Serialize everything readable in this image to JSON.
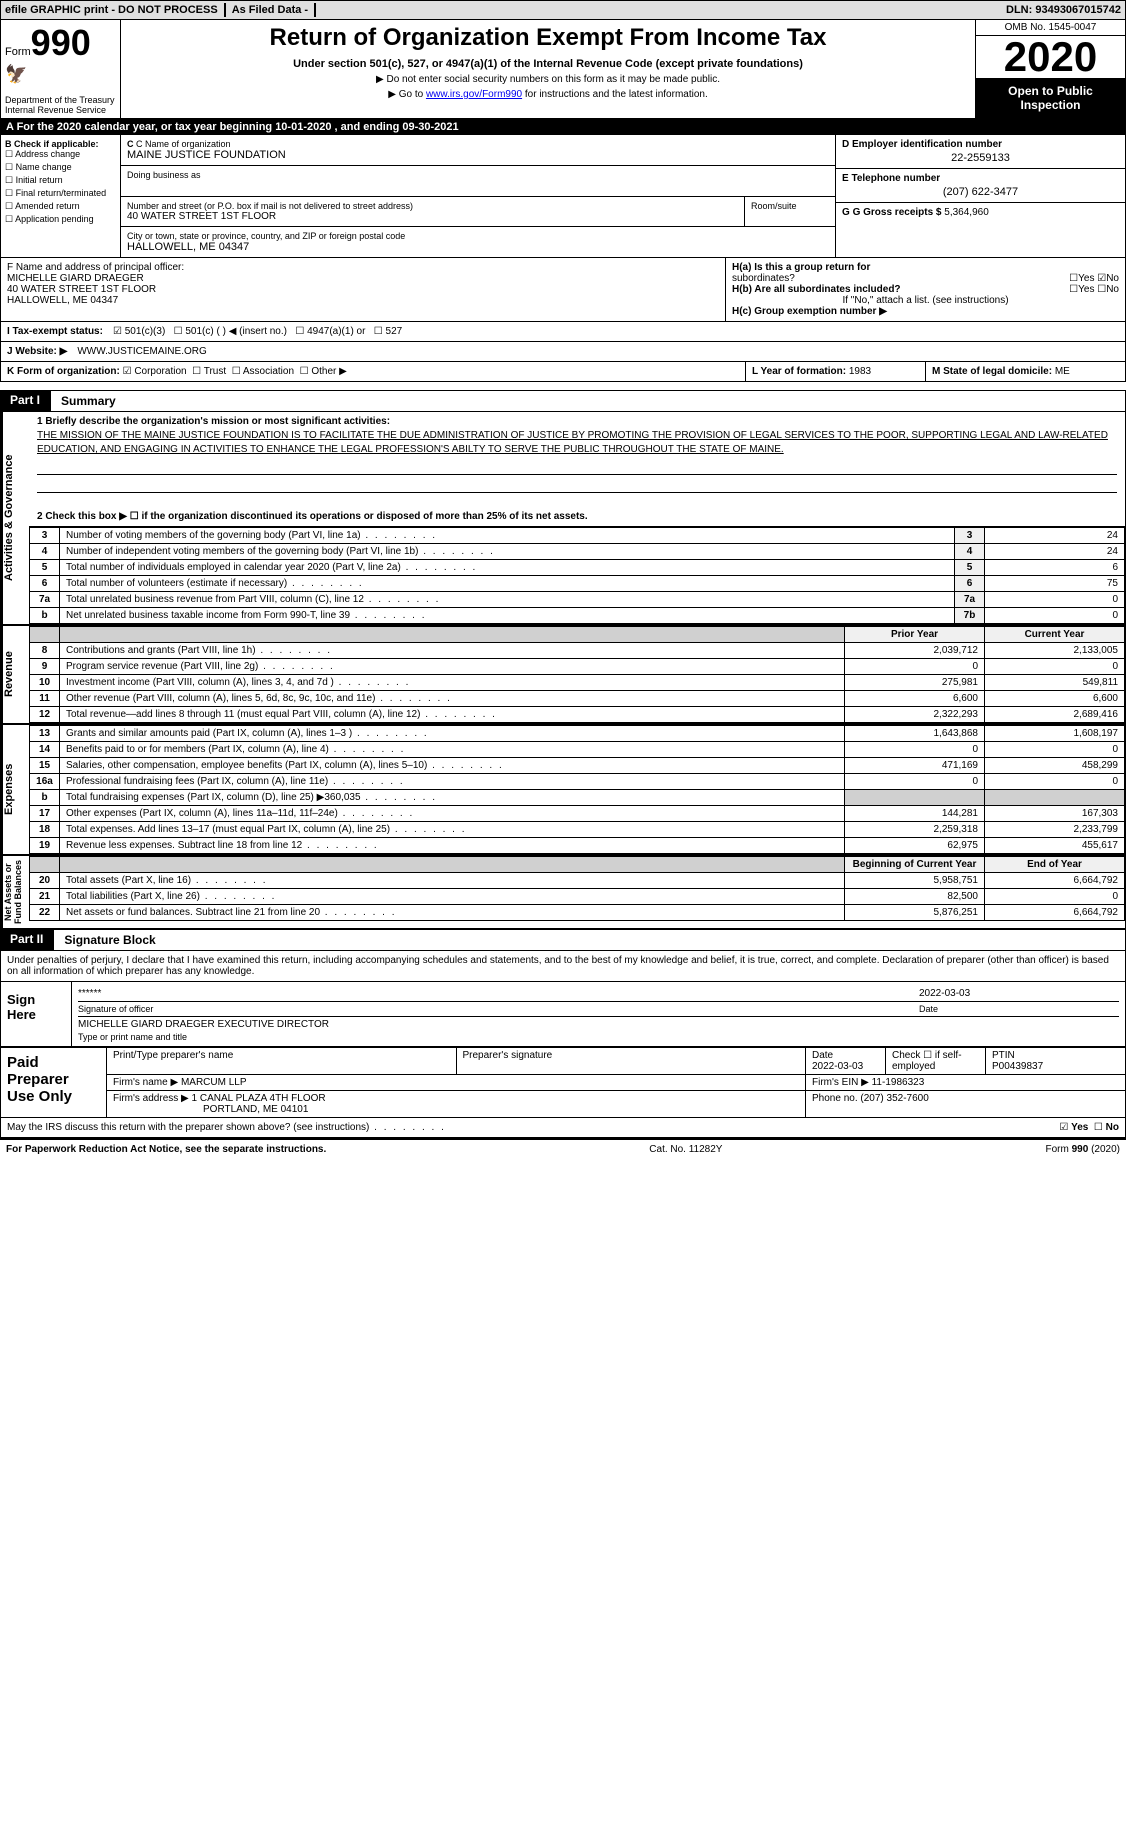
{
  "topbar": {
    "efile": "efile GRAPHIC print - DO NOT PROCESS",
    "asfiled": "As Filed Data -",
    "dln": "DLN: 93493067015742"
  },
  "header": {
    "form_prefix": "Form",
    "form_number": "990",
    "title": "Return of Organization Exempt From Income Tax",
    "subtitle": "Under section 501(c), 527, or 4947(a)(1) of the Internal Revenue Code (except private foundations)",
    "note1": "▶ Do not enter social security numbers on this form as it may be made public.",
    "note2_pre": "▶ Go to ",
    "note2_link": "www.irs.gov/Form990",
    "note2_post": " for instructions and the latest information.",
    "dept": "Department of the Treasury\nInternal Revenue Service",
    "omb": "OMB No. 1545-0047",
    "year": "2020",
    "open": "Open to Public\nInspection"
  },
  "row_a": "A  For the 2020 calendar year, or tax year beginning 10-01-2020   , and ending 09-30-2021",
  "section_b": {
    "label": "B Check if applicable:",
    "checks": [
      "Address change",
      "Name change",
      "Initial return",
      "Final return/terminated",
      "Amended return",
      "Application pending"
    ],
    "c_label": "C Name of organization",
    "c_name": "MAINE JUSTICE FOUNDATION",
    "dba_label": "Doing business as",
    "addr_label": "Number and street (or P.O. box if mail is not delivered to street address)",
    "addr": "40 WATER STREET 1ST FLOOR",
    "room_label": "Room/suite",
    "city_label": "City or town, state or province, country, and ZIP or foreign postal code",
    "city": "HALLOWELL, ME  04347",
    "d_label": "D Employer identification number",
    "d_value": "22-2559133",
    "e_label": "E Telephone number",
    "e_value": "(207) 622-3477",
    "g_label": "G Gross receipts $",
    "g_value": "5,364,960"
  },
  "officer": {
    "f_label": "F  Name and address of principal officer:",
    "name": "MICHELLE GIARD DRAEGER",
    "addr1": "40 WATER STREET 1ST FLOOR",
    "addr2": "HALLOWELL, ME  04347",
    "ha_label": "H(a)  Is this a group return for",
    "ha_sub": "subordinates?",
    "hb_label": "H(b)  Are all subordinates included?",
    "hb_note": "If \"No,\" attach a list. (see instructions)",
    "hc_label": "H(c)  Group exemption number ▶"
  },
  "row_i": {
    "label": "I  Tax-exempt status:",
    "opts": [
      "501(c)(3)",
      "501(c) (  ) ◀ (insert no.)",
      "4947(a)(1) or",
      "527"
    ]
  },
  "row_j": {
    "label": "J  Website: ▶",
    "value": "WWW.JUSTICEMAINE.ORG"
  },
  "row_k": {
    "label": "K Form of organization:",
    "opts": [
      "Corporation",
      "Trust",
      "Association",
      "Other ▶"
    ],
    "l_label": "L Year of formation:",
    "l_value": "1983",
    "m_label": "M State of legal domicile:",
    "m_value": "ME"
  },
  "part1": {
    "no": "Part I",
    "title": "Summary"
  },
  "mission": {
    "q1": "1 Briefly describe the organization's mission or most significant activities:",
    "ans": "THE MISSION OF THE MAINE JUSTICE FOUNDATION IS TO FACILITATE THE DUE ADMINISTRATION OF JUSTICE BY PROMOTING THE PROVISION OF LEGAL SERVICES TO THE POOR, SUPPORTING LEGAL AND LAW-RELATED EDUCATION, AND ENGAGING IN ACTIVITIES TO ENHANCE THE LEGAL PROFESSION'S ABILTY TO SERVE THE PUBLIC THROUGHOUT THE STATE OF MAINE.",
    "q2": "2  Check this box ▶ ☐ if the organization discontinued its operations or disposed of more than 25% of its net assets."
  },
  "gov_rows": [
    {
      "n": "3",
      "d": "Number of voting members of the governing body (Part VI, line 1a)",
      "r": "3",
      "v": "24"
    },
    {
      "n": "4",
      "d": "Number of independent voting members of the governing body (Part VI, line 1b)",
      "r": "4",
      "v": "24"
    },
    {
      "n": "5",
      "d": "Total number of individuals employed in calendar year 2020 (Part V, line 2a)",
      "r": "5",
      "v": "6"
    },
    {
      "n": "6",
      "d": "Total number of volunteers (estimate if necessary)",
      "r": "6",
      "v": "75"
    },
    {
      "n": "7a",
      "d": "Total unrelated business revenue from Part VIII, column (C), line 12",
      "r": "7a",
      "v": "0"
    },
    {
      "n": "b",
      "d": "Net unrelated business taxable income from Form 990-T, line 39",
      "r": "7b",
      "v": "0"
    }
  ],
  "headers_py_cy": {
    "py": "Prior Year",
    "cy": "Current Year"
  },
  "revenue_rows": [
    {
      "n": "8",
      "d": "Contributions and grants (Part VIII, line 1h)",
      "py": "2,039,712",
      "cy": "2,133,005"
    },
    {
      "n": "9",
      "d": "Program service revenue (Part VIII, line 2g)",
      "py": "0",
      "cy": "0"
    },
    {
      "n": "10",
      "d": "Investment income (Part VIII, column (A), lines 3, 4, and 7d )",
      "py": "275,981",
      "cy": "549,811"
    },
    {
      "n": "11",
      "d": "Other revenue (Part VIII, column (A), lines 5, 6d, 8c, 9c, 10c, and 11e)",
      "py": "6,600",
      "cy": "6,600"
    },
    {
      "n": "12",
      "d": "Total revenue—add lines 8 through 11 (must equal Part VIII, column (A), line 12)",
      "py": "2,322,293",
      "cy": "2,689,416"
    }
  ],
  "expense_rows": [
    {
      "n": "13",
      "d": "Grants and similar amounts paid (Part IX, column (A), lines 1–3 )",
      "py": "1,643,868",
      "cy": "1,608,197"
    },
    {
      "n": "14",
      "d": "Benefits paid to or for members (Part IX, column (A), line 4)",
      "py": "0",
      "cy": "0"
    },
    {
      "n": "15",
      "d": "Salaries, other compensation, employee benefits (Part IX, column (A), lines 5–10)",
      "py": "471,169",
      "cy": "458,299"
    },
    {
      "n": "16a",
      "d": "Professional fundraising fees (Part IX, column (A), line 11e)",
      "py": "0",
      "cy": "0"
    },
    {
      "n": "b",
      "d": "Total fundraising expenses (Part IX, column (D), line 25) ▶360,035",
      "py": "",
      "cy": "",
      "shaded": true
    },
    {
      "n": "17",
      "d": "Other expenses (Part IX, column (A), lines 11a–11d, 11f–24e)",
      "py": "144,281",
      "cy": "167,303"
    },
    {
      "n": "18",
      "d": "Total expenses. Add lines 13–17 (must equal Part IX, column (A), line 25)",
      "py": "2,259,318",
      "cy": "2,233,799"
    },
    {
      "n": "19",
      "d": "Revenue less expenses. Subtract line 18 from line 12",
      "py": "62,975",
      "cy": "455,617"
    }
  ],
  "headers_boy_eoy": {
    "boy": "Beginning of Current Year",
    "eoy": "End of Year"
  },
  "asset_rows": [
    {
      "n": "20",
      "d": "Total assets (Part X, line 16)",
      "py": "5,958,751",
      "cy": "6,664,792"
    },
    {
      "n": "21",
      "d": "Total liabilities (Part X, line 26)",
      "py": "82,500",
      "cy": "0"
    },
    {
      "n": "22",
      "d": "Net assets or fund balances. Subtract line 21 from line 20",
      "py": "5,876,251",
      "cy": "6,664,792"
    }
  ],
  "vlabels": {
    "gov": "Activities & Governance",
    "rev": "Revenue",
    "exp": "Expenses",
    "net": "Net Assets or\nFund Balances"
  },
  "part2": {
    "no": "Part II",
    "title": "Signature Block"
  },
  "sig": {
    "decl": "Under penalties of perjury, I declare that I have examined this return, including accompanying schedules and statements, and to the best of my knowledge and belief, it is true, correct, and complete. Declaration of preparer (other than officer) is based on all information of which preparer has any knowledge.",
    "sign_here": "Sign\nHere",
    "stars": "******",
    "date1": "2022-03-03",
    "sig_label": "Signature of officer",
    "date_label": "Date",
    "name_title": "MICHELLE GIARD DRAEGER  EXECUTIVE DIRECTOR",
    "type_label": "Type or print name and title"
  },
  "preparer": {
    "label": "Paid\nPreparer\nUse Only",
    "r1": {
      "c1": "Print/Type preparer's name",
      "c2": "Preparer's signature",
      "c3_label": "Date",
      "c3": "2022-03-03",
      "c4_label": "Check ☐ if self-employed",
      "c5_label": "PTIN",
      "c5": "P00439837"
    },
    "r2": {
      "c1_label": "Firm's name   ▶",
      "c1": "MARCUM LLP",
      "c2_label": "Firm's EIN ▶",
      "c2": "11-1986323"
    },
    "r3": {
      "c1_label": "Firm's address ▶",
      "c1": "1 CANAL PLAZA 4TH FLOOR",
      "c1b": "PORTLAND, ME  04101",
      "c2_label": "Phone no.",
      "c2": "(207) 352-7600"
    }
  },
  "discuss": "May the IRS discuss this return with the preparer shown above? (see instructions)",
  "yes": "Yes",
  "no": "No",
  "footer": {
    "left": "For Paperwork Reduction Act Notice, see the separate instructions.",
    "mid": "Cat. No. 11282Y",
    "right_pre": "Form ",
    "right_form": "990",
    "right_post": " (2020)"
  }
}
